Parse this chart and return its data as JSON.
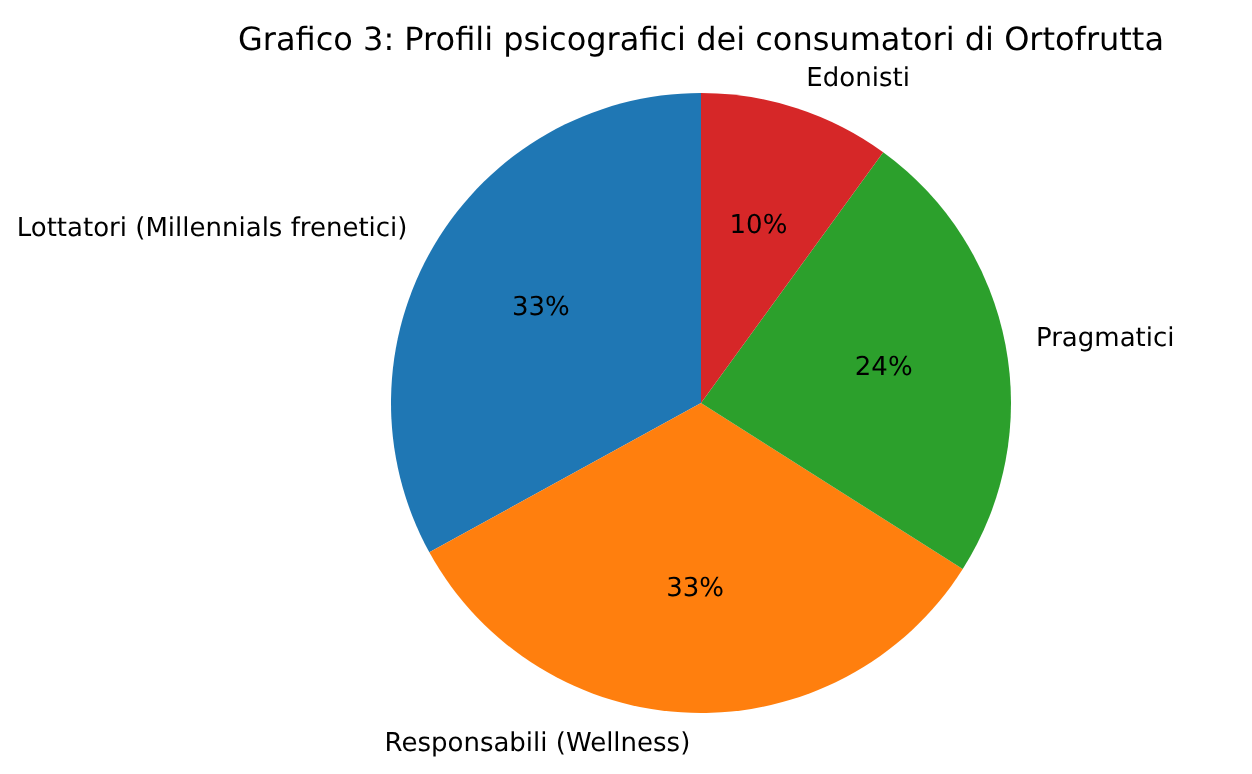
{
  "chart_data": {
    "type": "pie",
    "title": "Grafico 3: Profili psicografici dei consumatori di Ortofrutta",
    "categories": [
      "Lottatori (Millennials frenetici)",
      "Responsabili (Wellness)",
      "Pragmatici",
      "Edonisti"
    ],
    "values": [
      33,
      33,
      24,
      10
    ],
    "colors": [
      "#1f77b4",
      "#ff7f0e",
      "#2ca02c",
      "#d62728"
    ],
    "value_labels": [
      "33%",
      "33%",
      "24%",
      "10%"
    ]
  }
}
